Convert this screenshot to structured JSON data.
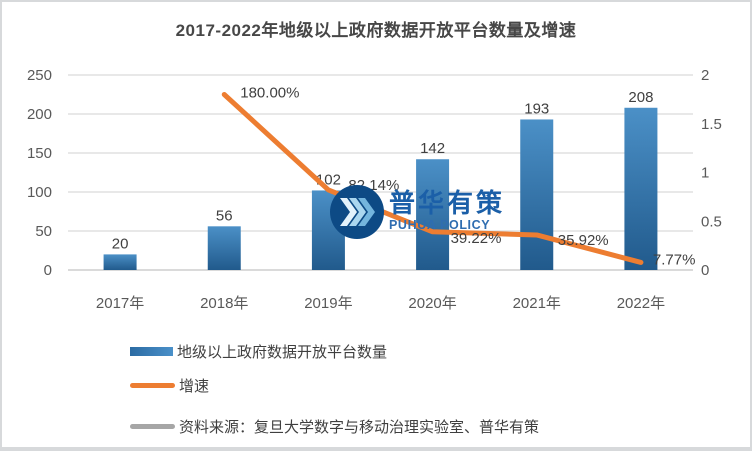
{
  "title": "2017-2022年地级以上政府数据开放平台数量及增速",
  "colors": {
    "bar_top": "#4b90c7",
    "bar_bottom": "#215a8c",
    "line": "#ed7d31",
    "gridline": "#d9d9d9",
    "baseline": "#c3c3c3",
    "axis_text": "#595959",
    "data_label": "#404040",
    "watermark_circle": "#0d4a85",
    "watermark_text": "#1b5fa8"
  },
  "legend": [
    {
      "label": "地级以上政府数据开放平台数量",
      "swatch": "bar",
      "color": "#2e75b6"
    },
    {
      "label": "增速",
      "swatch": "line",
      "color": "#ed7d31"
    },
    {
      "label": "资料来源：复旦大学数字与移动治理实验室、普华有策",
      "swatch": "line",
      "color": "#a6a6a6"
    }
  ],
  "watermark": {
    "brand_cn": "普华有策",
    "brand_en": "PUHUA POLICY"
  },
  "chart_data": {
    "type": "combo",
    "title": "2017-2022年地级以上政府数据开放平台数量及增速",
    "categories": [
      "2017年",
      "2018年",
      "2019年",
      "2020年",
      "2021年",
      "2022年"
    ],
    "series": [
      {
        "name": "地级以上政府数据开放平台数量",
        "type": "bar",
        "axis": "left",
        "values": [
          20,
          56,
          102,
          142,
          193,
          208
        ],
        "labels": [
          "20",
          "56",
          "102",
          "142",
          "193",
          "208"
        ]
      },
      {
        "name": "增速",
        "type": "line",
        "axis": "right",
        "values": [
          null,
          1.8,
          0.8214,
          0.3922,
          0.3592,
          0.0777
        ],
        "labels": [
          null,
          "180.00%",
          "82.14%",
          "39.22%",
          "35.92%",
          "7.77%"
        ],
        "label_offsets": [
          null,
          [
            16,
            -2
          ],
          [
            20,
            -5
          ],
          [
            18,
            6
          ],
          [
            21,
            5
          ],
          [
            12,
            -3
          ]
        ]
      }
    ],
    "left_axis": {
      "min": 0,
      "max": 250,
      "step": 50,
      "tick_values": [
        250,
        200,
        150,
        100,
        50,
        0
      ],
      "tick_labels": [
        "250",
        "200",
        "150",
        "100",
        "50",
        "0"
      ]
    },
    "right_axis": {
      "min": 0,
      "max": 2,
      "step": 0.5,
      "tick_values": [
        2,
        1.5,
        1,
        0.5,
        0
      ],
      "tick_labels": [
        "2",
        "1.5",
        "1",
        "0.5",
        "0"
      ]
    },
    "grid": true,
    "legend_position": "bottom-left"
  }
}
